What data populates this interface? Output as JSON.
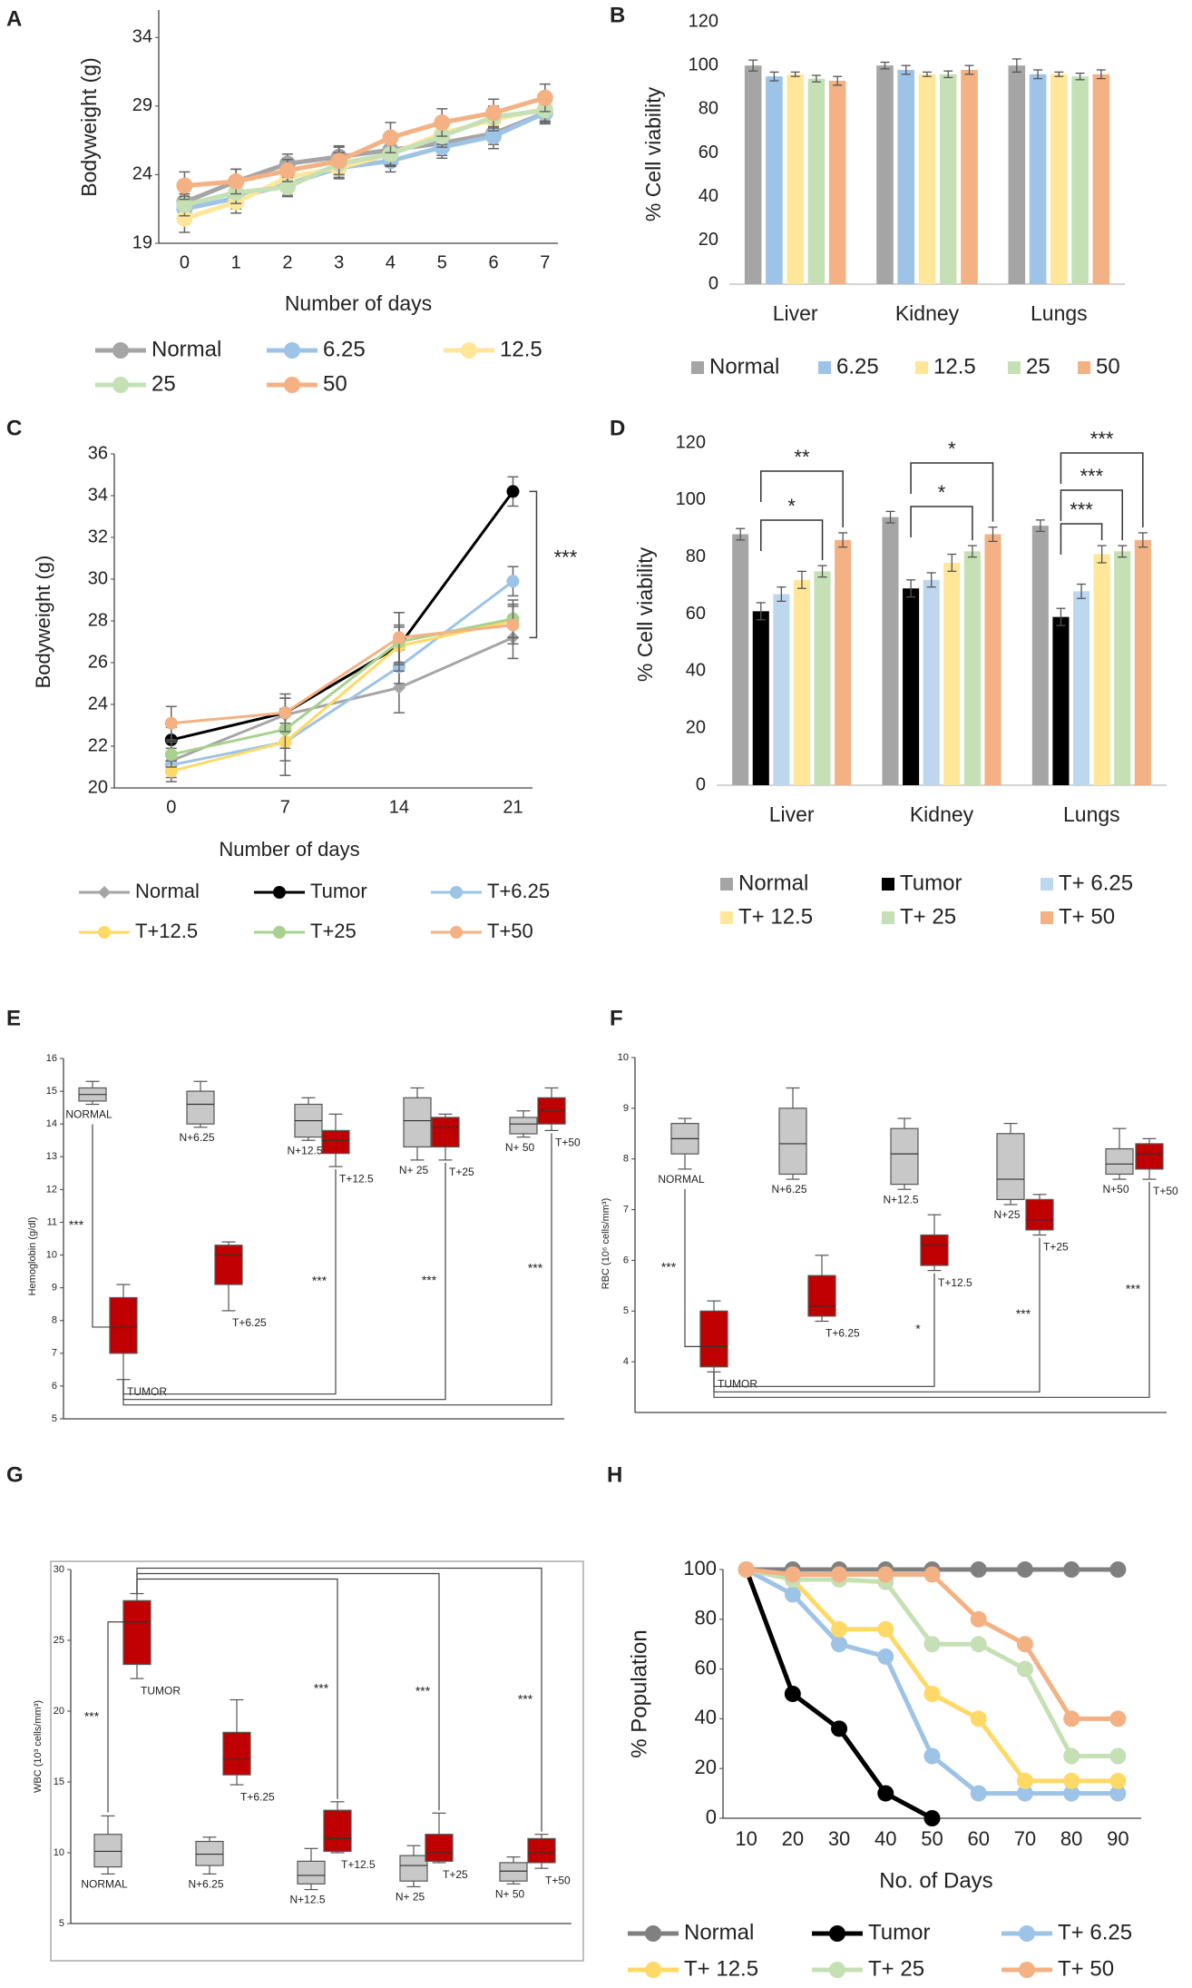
{
  "chart_data": [
    {
      "type": "line",
      "panel": "A",
      "xlabel": "Number of days",
      "ylabel": "Bodyweight (g)",
      "x": [
        0,
        1,
        2,
        3,
        4,
        5,
        6,
        7
      ],
      "xlim": [
        -0.5,
        7.25
      ],
      "ylim": [
        19,
        36
      ],
      "yticks": [
        19,
        24,
        29,
        34
      ],
      "series": [
        {
          "name": "Normal",
          "color": "#a5a5a5",
          "values": [
            22,
            23.5,
            24.8,
            25.3,
            25.8,
            26.3,
            27,
            28.5
          ],
          "errors": [
            0.8,
            0.9,
            0.7,
            0.8,
            0.8,
            0.9,
            0.8,
            0.7
          ]
        },
        {
          "name": "6.25",
          "color": "#9dc3e6",
          "values": [
            21.5,
            22.3,
            23.3,
            24.5,
            25,
            26,
            26.8,
            28.5
          ],
          "errors": [
            0.9,
            0.8,
            0.8,
            0.7,
            0.8,
            0.8,
            0.9,
            0.8
          ]
        },
        {
          "name": "12.5",
          "color": "#ffe699",
          "values": [
            20.8,
            22,
            23.8,
            24.5,
            25.5,
            27,
            28,
            28.8
          ],
          "errors": [
            1.0,
            0.8,
            0.7,
            0.8,
            0.9,
            0.8,
            0.8,
            0.9
          ]
        },
        {
          "name": "25",
          "color": "#c5e0b4",
          "values": [
            21.8,
            22.7,
            23.1,
            24.8,
            25.5,
            26.8,
            28.2,
            28.7
          ],
          "errors": [
            0.8,
            0.8,
            0.7,
            0.8,
            0.8,
            0.8,
            0.8,
            0.8
          ]
        },
        {
          "name": "50",
          "color": "#f4b183",
          "values": [
            23.2,
            23.5,
            24.3,
            25,
            26.7,
            27.8,
            28.5,
            29.6
          ],
          "errors": [
            1.0,
            0.9,
            0.8,
            1.0,
            1.1,
            1.0,
            1.0,
            1.0
          ]
        }
      ]
    },
    {
      "type": "bar",
      "panel": "B",
      "ylabel": "% Cell viability",
      "categories": [
        "Liver",
        "Kidney",
        "Lungs"
      ],
      "ylim": [
        0,
        120
      ],
      "yticks": [
        0,
        20,
        40,
        60,
        80,
        100,
        120
      ],
      "series": [
        {
          "name": "Normal",
          "color": "#a5a5a5",
          "values": [
            100,
            100,
            100
          ],
          "errors": [
            2.5,
            1.5,
            3
          ]
        },
        {
          "name": "6.25",
          "color": "#9dc3e6",
          "values": [
            95,
            98,
            96
          ],
          "errors": [
            2,
            2,
            2
          ]
        },
        {
          "name": "12.5",
          "color": "#ffe699",
          "values": [
            96,
            96,
            96
          ],
          "errors": [
            1,
            1,
            1
          ]
        },
        {
          "name": "25",
          "color": "#c5e0b4",
          "values": [
            94,
            96,
            95
          ],
          "errors": [
            1.5,
            1.5,
            1.5
          ]
        },
        {
          "name": "50",
          "color": "#f4b183",
          "values": [
            93,
            98,
            96
          ],
          "errors": [
            2,
            2,
            2
          ]
        }
      ]
    },
    {
      "type": "line",
      "panel": "C",
      "xlabel": "Number of days",
      "ylabel": "Bodyweight (g)",
      "x": [
        0,
        7,
        14,
        21
      ],
      "xlim": [
        -3.5,
        22.2
      ],
      "ylim": [
        20,
        36
      ],
      "yticks": [
        20,
        22,
        24,
        26,
        28,
        30,
        32,
        34,
        36
      ],
      "annotations": [
        "***"
      ],
      "series": [
        {
          "name": "Normal",
          "color": "#a5a5a5",
          "marker": "diamond",
          "values": [
            21.3,
            23.5,
            24.8,
            27.2
          ],
          "errors": [
            0.6,
            0.8,
            1.2,
            1.0
          ]
        },
        {
          "name": "Tumor",
          "color": "#000000",
          "values": [
            22.3,
            23.6,
            26.8,
            34.2
          ],
          "errors": [
            0.6,
            0.7,
            1.0,
            0.7
          ]
        },
        {
          "name": "T+6.25",
          "color": "#9dc3e6",
          "values": [
            21.1,
            22.2,
            25.8,
            29.9
          ],
          "errors": [
            0.6,
            0.9,
            0.8,
            0.7
          ]
        },
        {
          "name": "T+12.5",
          "color": "#ffd966",
          "values": [
            20.8,
            22.2,
            26.8,
            28
          ],
          "errors": [
            0.5,
            1.6,
            0.9,
            0.8
          ]
        },
        {
          "name": "T+25",
          "color": "#a9d18e",
          "values": [
            21.6,
            22.8,
            27,
            28.1
          ],
          "errors": [
            0.6,
            0.9,
            1.4,
            0.9
          ]
        },
        {
          "name": "T+50",
          "color": "#f4b183",
          "values": [
            23.1,
            23.6,
            27.2,
            27.8
          ],
          "errors": [
            0.8,
            0.9,
            1.2,
            0.9
          ]
        }
      ]
    },
    {
      "type": "bar",
      "panel": "D",
      "ylabel": "% Cell viability",
      "categories": [
        "Liver",
        "Kidney",
        "Lungs"
      ],
      "ylim": [
        0,
        120
      ],
      "yticks": [
        0,
        20,
        40,
        60,
        80,
        100,
        120
      ],
      "annotations": [
        "**",
        "*",
        "*",
        "*",
        "***",
        "***",
        "***"
      ],
      "series": [
        {
          "name": "Normal",
          "color": "#a5a5a5",
          "values": [
            88,
            94,
            91
          ],
          "errors": [
            2,
            2,
            2
          ]
        },
        {
          "name": "Tumor",
          "color": "#000000",
          "values": [
            61,
            69,
            59
          ],
          "errors": [
            3,
            3,
            3
          ]
        },
        {
          "name": "T+ 6.25",
          "color": "#bdd7ee",
          "values": [
            67,
            72,
            68
          ],
          "errors": [
            2.5,
            2.5,
            2.5
          ]
        },
        {
          "name": "T+ 12.5",
          "color": "#ffe699",
          "values": [
            72,
            78,
            81
          ],
          "errors": [
            3,
            3,
            3
          ]
        },
        {
          "name": "T+ 25",
          "color": "#c5e0b4",
          "values": [
            75,
            82,
            82
          ],
          "errors": [
            2,
            2,
            2
          ]
        },
        {
          "name": "T+ 50",
          "color": "#f4b183",
          "values": [
            86,
            88,
            86
          ],
          "errors": [
            2.5,
            2.5,
            2.5
          ]
        }
      ]
    },
    {
      "type": "box",
      "panel": "E",
      "ylabel": "Hemoglobin (g/dl)",
      "ylim": [
        5,
        16
      ],
      "yticks": [
        5,
        6,
        7,
        8,
        9,
        10,
        11,
        12,
        13,
        14,
        15,
        16
      ],
      "annotations": [
        "***",
        "***",
        "***",
        "***"
      ],
      "categories": [
        "NORMAL",
        "TUMOR",
        "N+6.25",
        "T+6.25",
        "N+12.5",
        "T+12.5",
        "N+ 25",
        "T+25",
        "N+ 50",
        "T+50"
      ],
      "boxes": [
        {
          "min": 14.6,
          "q1": 14.7,
          "median": 14.9,
          "q3": 15.1,
          "max": 15.3,
          "color": "#c8c8c8"
        },
        {
          "min": 6.2,
          "q1": 7,
          "median": 7.8,
          "q3": 8.7,
          "max": 9.1,
          "color": "#c00000"
        },
        {
          "min": 13.9,
          "q1": 14,
          "median": 14.6,
          "q3": 15,
          "max": 15.3,
          "color": "#c8c8c8"
        },
        {
          "min": 8.3,
          "q1": 9.1,
          "median": 10,
          "q3": 10.3,
          "max": 10.4,
          "color": "#c00000"
        },
        {
          "min": 13.5,
          "q1": 13.6,
          "median": 14.1,
          "q3": 14.6,
          "max": 14.8,
          "color": "#c8c8c8"
        },
        {
          "min": 12.7,
          "q1": 13.1,
          "median": 13.5,
          "q3": 13.8,
          "max": 14.3,
          "color": "#c00000"
        },
        {
          "min": 12.9,
          "q1": 13.3,
          "median": 14.1,
          "q3": 14.8,
          "max": 15.1,
          "color": "#c8c8c8"
        },
        {
          "min": 12.9,
          "q1": 13.3,
          "median": 13.9,
          "q3": 14.2,
          "max": 14.3,
          "color": "#c00000"
        },
        {
          "min": 13.6,
          "q1": 13.7,
          "median": 14,
          "q3": 14.2,
          "max": 14.4,
          "color": "#c8c8c8"
        },
        {
          "min": 13.8,
          "q1": 14,
          "median": 14.4,
          "q3": 14.8,
          "max": 15.1,
          "color": "#c00000"
        }
      ]
    },
    {
      "type": "box",
      "panel": "F",
      "ylabel": "RBC (10⁶ cells/mm³)",
      "ylim": [
        3,
        10
      ],
      "yticks": [
        4,
        5,
        6,
        7,
        8,
        9,
        10
      ],
      "annotations": [
        "***",
        "*",
        "***",
        "***"
      ],
      "categories": [
        "NORMAL",
        "TUMOR",
        "N+6.25",
        "T+6.25",
        "N+12.5",
        "T+12.5",
        "N+25",
        "T+25",
        "N+50",
        "T+50"
      ],
      "boxes": [
        {
          "min": 7.8,
          "q1": 8.1,
          "median": 8.4,
          "q3": 8.7,
          "max": 8.8,
          "color": "#c8c8c8"
        },
        {
          "min": 3.8,
          "q1": 3.9,
          "median": 4.3,
          "q3": 5.0,
          "max": 5.2,
          "color": "#c00000"
        },
        {
          "min": 7.6,
          "q1": 7.7,
          "median": 8.3,
          "q3": 9,
          "max": 9.4,
          "color": "#c8c8c8"
        },
        {
          "min": 4.8,
          "q1": 4.9,
          "median": 5.1,
          "q3": 5.7,
          "max": 6.1,
          "color": "#c00000"
        },
        {
          "min": 7.4,
          "q1": 7.5,
          "median": 8.1,
          "q3": 8.6,
          "max": 8.8,
          "color": "#c8c8c8"
        },
        {
          "min": 5.8,
          "q1": 5.9,
          "median": 6.3,
          "q3": 6.5,
          "max": 6.9,
          "color": "#c00000"
        },
        {
          "min": 7.1,
          "q1": 7.2,
          "median": 7.6,
          "q3": 8.5,
          "max": 8.7,
          "color": "#c8c8c8"
        },
        {
          "min": 6.5,
          "q1": 6.6,
          "median": 6.8,
          "q3": 7.2,
          "max": 7.3,
          "color": "#c00000"
        },
        {
          "min": 7.6,
          "q1": 7.7,
          "median": 7.9,
          "q3": 8.2,
          "max": 8.6,
          "color": "#c8c8c8"
        },
        {
          "min": 7.6,
          "q1": 7.8,
          "median": 8.1,
          "q3": 8.3,
          "max": 8.4,
          "color": "#c00000"
        }
      ]
    },
    {
      "type": "box",
      "panel": "G",
      "ylabel": "WBC (10³ cells/mm³)",
      "ylim": [
        5,
        30
      ],
      "yticks": [
        5,
        10,
        15,
        20,
        25,
        30
      ],
      "annotations": [
        "***",
        "***",
        "***",
        "***"
      ],
      "categories": [
        "NORMAL",
        "TUMOR",
        "N+6.25",
        "T+6.25",
        "N+12.5",
        "T+12.5",
        "N+ 25",
        "T+25",
        "N+ 50",
        "T+50"
      ],
      "boxes": [
        {
          "min": 8.5,
          "q1": 9,
          "median": 10.1,
          "q3": 11.3,
          "max": 12.6,
          "color": "#c8c8c8"
        },
        {
          "min": 22.3,
          "q1": 23.3,
          "median": 26.3,
          "q3": 27.8,
          "max": 28.3,
          "color": "#c00000"
        },
        {
          "min": 8.5,
          "q1": 9.1,
          "median": 9.9,
          "q3": 10.8,
          "max": 11.1,
          "color": "#c8c8c8"
        },
        {
          "min": 14.8,
          "q1": 15.5,
          "median": 16.6,
          "q3": 18.5,
          "max": 20.8,
          "color": "#c00000"
        },
        {
          "min": 7.4,
          "q1": 7.8,
          "median": 8.4,
          "q3": 9.4,
          "max": 10.3,
          "color": "#c8c8c8"
        },
        {
          "min": 10,
          "q1": 10.1,
          "median": 11,
          "q3": 13,
          "max": 13.6,
          "color": "#c00000"
        },
        {
          "min": 7.6,
          "q1": 8,
          "median": 9.1,
          "q3": 9.8,
          "max": 10.5,
          "color": "#c8c8c8"
        },
        {
          "min": 9.3,
          "q1": 9.4,
          "median": 10,
          "q3": 11.3,
          "max": 12.8,
          "color": "#c00000"
        },
        {
          "min": 7.8,
          "q1": 8,
          "median": 8.7,
          "q3": 9.3,
          "max": 9.7,
          "color": "#c8c8c8"
        },
        {
          "min": 8.9,
          "q1": 9.3,
          "median": 10,
          "q3": 11,
          "max": 11.3,
          "color": "#c00000"
        }
      ]
    },
    {
      "type": "line",
      "panel": "H",
      "xlabel": "No. of Days",
      "ylabel": "% Population",
      "x": [
        10,
        20,
        30,
        40,
        50,
        60,
        70,
        80,
        90
      ],
      "xlim": [
        5,
        95
      ],
      "ylim": [
        0,
        100
      ],
      "yticks": [
        0,
        20,
        40,
        60,
        80,
        100
      ],
      "series": [
        {
          "name": "Normal",
          "color": "#808080",
          "values": [
            100,
            100,
            100,
            100,
            100,
            100,
            100,
            100,
            100
          ]
        },
        {
          "name": "Tumor",
          "color": "#000000",
          "values": [
            100,
            50,
            36,
            10,
            0,
            null,
            null,
            null,
            null
          ]
        },
        {
          "name": "T+ 6.25",
          "color": "#9dc3e6",
          "values": [
            100,
            90,
            70,
            65,
            25,
            10,
            10,
            10,
            10
          ]
        },
        {
          "name": "T+ 12.5",
          "color": "#ffd966",
          "values": [
            100,
            96,
            76,
            76,
            50,
            40,
            15,
            15,
            15
          ]
        },
        {
          "name": "T+ 25",
          "color": "#c5e0b4",
          "values": [
            100,
            96,
            96,
            95,
            70,
            70,
            60,
            25,
            25
          ]
        },
        {
          "name": "T+ 50",
          "color": "#f4b183",
          "values": [
            100,
            98,
            98,
            98,
            98,
            80,
            70,
            40,
            40
          ]
        }
      ]
    }
  ]
}
